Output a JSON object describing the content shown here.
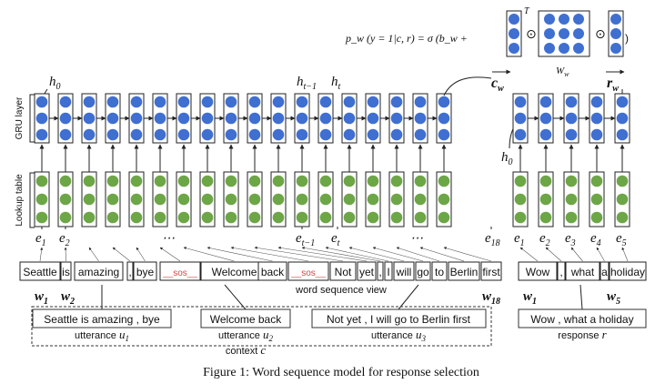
{
  "colors": {
    "gru": "#3f6fd1",
    "lookup": "#6da646",
    "sos": "#d64545",
    "line": "#222222"
  },
  "formula": {
    "lhs": "p_w (y = 1|c, r) = σ (b_w +",
    "close": ")",
    "transpose": "T",
    "odot": "⊙",
    "matrix_label": "W",
    "matrix_sub": "w"
  },
  "vector_labels": {
    "context": "c",
    "context_sub": "w",
    "response": "r",
    "response_sub": "w"
  },
  "layer_labels": {
    "gru": "GRU layer",
    "lookup": "Lookup table"
  },
  "hidden_labels": {
    "h0_context": "h",
    "h0_context_sub": "0",
    "h_prev": "h",
    "h_prev_sub": "t−1",
    "h_t": "h",
    "h_t_sub": "t",
    "h0_response": "h",
    "h0_response_sub": "0"
  },
  "embedding_labels": {
    "context": [
      {
        "base": "e",
        "sub": "1"
      },
      {
        "base": "e",
        "sub": "2"
      },
      {
        "base": "⋯",
        "sub": ""
      },
      {
        "base": "e",
        "sub": "t−1"
      },
      {
        "base": "e",
        "sub": "t"
      },
      {
        "base": "⋯",
        "sub": ""
      },
      {
        "base": "e",
        "sub": "18"
      }
    ],
    "response": [
      {
        "base": "e",
        "sub": "1"
      },
      {
        "base": "e",
        "sub": "2"
      },
      {
        "base": "e",
        "sub": "3"
      },
      {
        "base": "e",
        "sub": "4"
      },
      {
        "base": "e",
        "sub": "5"
      }
    ]
  },
  "context_tokens": [
    "Seattle",
    "is",
    "amazing",
    ",",
    "bye",
    "__sos__",
    "Welcome",
    "back",
    "__sos__",
    "Not",
    "yet",
    ",",
    "I",
    "will",
    "go",
    "to",
    "Berlin",
    "first"
  ],
  "response_tokens": [
    "Wow",
    ",",
    "what",
    "a",
    "holiday"
  ],
  "word_labels": {
    "w1": "w",
    "w1_sub": "1",
    "w2": "w",
    "w2_sub": "2",
    "w18": "w",
    "w18_sub": "18",
    "rw1": "w",
    "rw1_sub": "1",
    "rw5": "w",
    "rw5_sub": "5"
  },
  "sequence_view_label": "word sequence view",
  "utterances": [
    {
      "text": "Seattle is amazing , bye",
      "label": "utterance",
      "var": "u",
      "sub": "1"
    },
    {
      "text": "Welcome back",
      "label": "utterance",
      "var": "u",
      "sub": "2"
    },
    {
      "text": "Not yet , I will go to Berlin first",
      "label": "utterance",
      "var": "u",
      "sub": "3"
    }
  ],
  "context_label": {
    "text": "context",
    "var": "c"
  },
  "response": {
    "text": "Wow , what a holiday",
    "label": "response",
    "var": "r"
  },
  "caption": "Figure 1: Word sequence model for response selection"
}
